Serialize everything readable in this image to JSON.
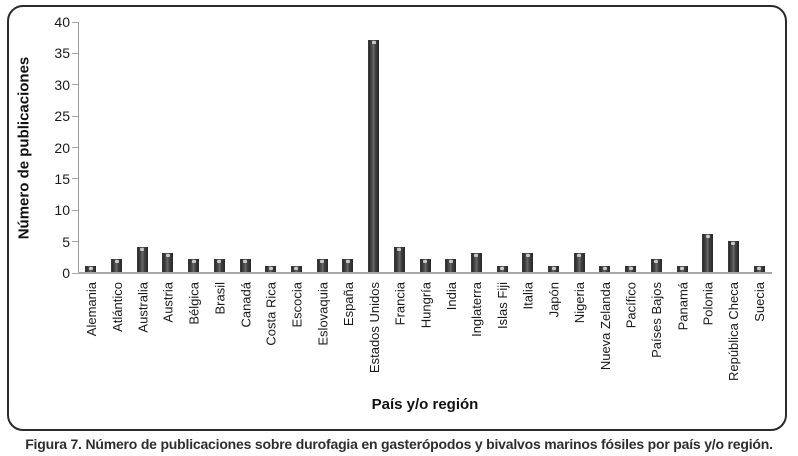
{
  "chart_data": {
    "type": "bar",
    "title": "",
    "xlabel": "País y/o región",
    "ylabel": "Número de publicaciones",
    "categories": [
      "Alemania",
      "Atlántico",
      "Australia",
      "Austria",
      "Bélgica",
      "Brasil",
      "Canadá",
      "Costa Rica",
      "Escocia",
      "Eslovaquia",
      "España",
      "Estados Unidos",
      "Francia",
      "Hungría",
      "India",
      "Inglaterra",
      "Islas Fiji",
      "Italia",
      "Japón",
      "Nigeria",
      "Nueva Zelanda",
      "Pacífico",
      "Países Bajos",
      "Panamá",
      "Polonia",
      "República Checa",
      "Suecia"
    ],
    "values": [
      1,
      2,
      4,
      3,
      2,
      2,
      2,
      1,
      1,
      2,
      2,
      37,
      4,
      2,
      2,
      3,
      1,
      3,
      1,
      3,
      1,
      1,
      2,
      1,
      6,
      5,
      1
    ],
    "ylim": [
      0,
      40
    ],
    "ytick_step": 5,
    "grid": false,
    "legend": false,
    "bar_color_dark": "#2d2d2d",
    "bar_color_light": "#6b6b6b",
    "axis_color": "#9a9a9a",
    "baseline_color": "#a6a6a6",
    "text_color": "#1a1a1a"
  },
  "caption": "Figura 7. Número de publicaciones sobre durofagia en gasterópodos y bivalvos marinos fósiles por país y/o región."
}
